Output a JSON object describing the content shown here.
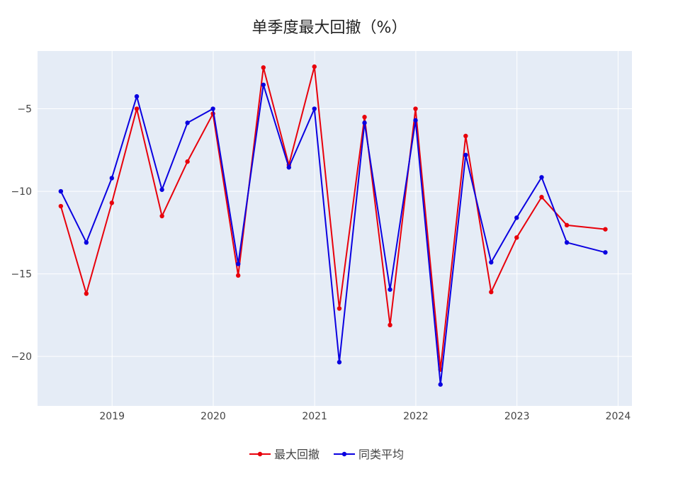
{
  "chart_data": {
    "type": "line",
    "title": "单季度最大回撤（%）",
    "xlabel": "",
    "ylabel": "",
    "x": [
      "2018-06-30",
      "2018-09-30",
      "2018-12-31",
      "2019-03-31",
      "2019-06-30",
      "2019-09-30",
      "2019-12-31",
      "2020-03-31",
      "2020-06-30",
      "2020-09-30",
      "2020-12-31",
      "2021-03-31",
      "2021-06-30",
      "2021-09-30",
      "2021-12-31",
      "2022-03-31",
      "2022-06-30",
      "2022-09-30",
      "2022-12-31",
      "2023-03-31",
      "2023-06-30",
      "2023-11-16"
    ],
    "series": [
      {
        "name": "最大回撤",
        "color": "#e8000b",
        "values": [
          -10.9,
          -16.2,
          -10.7,
          -5.0,
          -11.5,
          -8.2,
          -5.3,
          -15.1,
          -2.5,
          -8.4,
          -2.45,
          -17.1,
          -5.5,
          -18.1,
          -5.0,
          -20.8,
          -6.65,
          -16.1,
          -12.8,
          -10.35,
          -12.05,
          -12.3
        ]
      },
      {
        "name": "同类平均",
        "color": "#0a00e0",
        "values": [
          -10.0,
          -13.1,
          -9.2,
          -4.25,
          -9.9,
          -5.85,
          -5.0,
          -14.4,
          -3.55,
          -8.55,
          -5.0,
          -20.35,
          -5.85,
          -15.95,
          -5.7,
          -21.7,
          -7.8,
          -14.3,
          -11.6,
          -9.15,
          -13.1,
          -13.7
        ]
      }
    ],
    "xaxis": {
      "range": [
        "2018-04-07",
        "2024-02-20"
      ],
      "ticks": [
        "2019-01-01",
        "2020-01-01",
        "2021-01-01",
        "2022-01-01",
        "2023-01-01",
        "2024-01-01"
      ],
      "tick_labels": [
        "2019",
        "2020",
        "2021",
        "2022",
        "2023",
        "2024"
      ]
    },
    "yaxis": {
      "range": [
        -23,
        -1.5
      ],
      "ticks": [
        -5,
        -10,
        -15,
        -20
      ],
      "tick_labels": [
        "−5",
        "−10",
        "−15",
        "−20"
      ]
    },
    "grid": true,
    "legend_position": "bottom-center",
    "plot_background": "#e5ecf6"
  }
}
